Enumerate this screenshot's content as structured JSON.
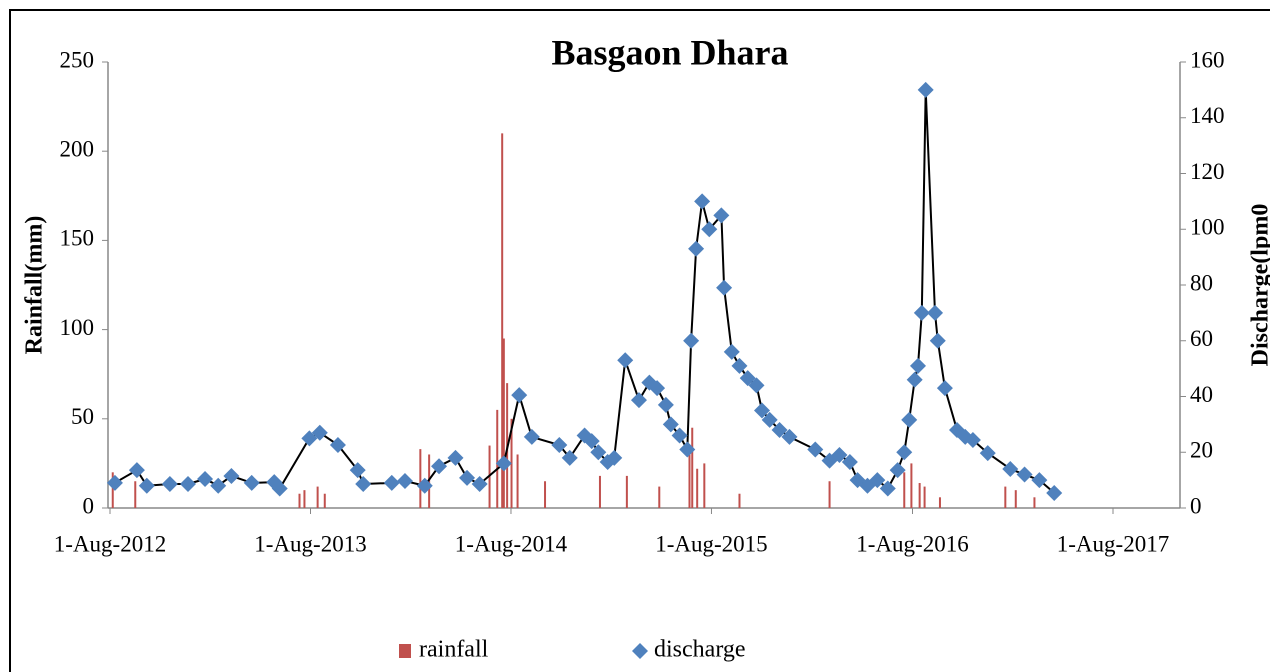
{
  "chart_data": {
    "type": "bar-line",
    "title": "Basgaon Dhara",
    "y_label": "Rainfall(mm)",
    "y2_label": "Discharge(lpm0",
    "xlim": [
      "2012-08-01",
      "2017-12-01"
    ],
    "xticks": [
      {
        "value": "2012-08-01",
        "label": "1-Aug-2012"
      },
      {
        "value": "2013-08-01",
        "label": "1-Aug-2013"
      },
      {
        "value": "2014-08-01",
        "label": "1-Aug-2014"
      },
      {
        "value": "2015-08-01",
        "label": "1-Aug-2015"
      },
      {
        "value": "2016-08-01",
        "label": "1-Aug-2016"
      },
      {
        "value": "2017-08-01",
        "label": "1-Aug-2017"
      }
    ],
    "ylim": [
      0,
      250
    ],
    "yticks": [
      0,
      50,
      100,
      150,
      200,
      250
    ],
    "y2lim": [
      0,
      160
    ],
    "y2ticks": [
      0,
      20,
      40,
      60,
      80,
      100,
      120,
      140,
      160
    ],
    "legend": "bottom",
    "series": [
      {
        "name": "rainfall",
        "type": "bar",
        "color": "#c0504d",
        "x": [
          "2012-08-06",
          "2012-09-16",
          "2013-07-12",
          "2013-07-21",
          "2013-08-14",
          "2013-08-27",
          "2014-02-17",
          "2014-03-05",
          "2014-06-23",
          "2014-07-07",
          "2014-07-16",
          "2014-07-19",
          "2014-07-25",
          "2014-08-02",
          "2014-08-13",
          "2014-10-02",
          "2015-01-10",
          "2015-02-28",
          "2015-04-28",
          "2015-06-22",
          "2015-06-27",
          "2015-07-06",
          "2015-07-19",
          "2015-09-21",
          "2016-03-03",
          "2016-07-17",
          "2016-07-30",
          "2016-08-14",
          "2016-08-23",
          "2016-09-20",
          "2017-01-17",
          "2017-02-05",
          "2017-03-11"
        ],
        "values": [
          20,
          15,
          8,
          10,
          12,
          8,
          33,
          30,
          35,
          55,
          210,
          95,
          70,
          50,
          30,
          15,
          18,
          18,
          12,
          30,
          45,
          22,
          25,
          8,
          15,
          20,
          25,
          14,
          12,
          6,
          12,
          10,
          6
        ]
      },
      {
        "name": "discharge",
        "type": "line",
        "axis": "y2",
        "color": "#4f81bd",
        "line_color": "#000000",
        "x": [
          "2012-08-10",
          "2012-09-19",
          "2012-10-07",
          "2012-11-18",
          "2012-12-21",
          "2013-01-21",
          "2013-02-14",
          "2013-03-10",
          "2013-04-16",
          "2013-05-27",
          "2013-06-06",
          "2013-07-30",
          "2013-08-18",
          "2013-09-20",
          "2013-10-26",
          "2013-11-05",
          "2013-12-27",
          "2014-01-20",
          "2014-02-25",
          "2014-03-23",
          "2014-04-22",
          "2014-05-13",
          "2014-06-05",
          "2014-07-19",
          "2014-08-16",
          "2014-09-08",
          "2014-10-28",
          "2014-11-16",
          "2014-12-13",
          "2014-12-26",
          "2015-01-07",
          "2015-01-24",
          "2015-02-05",
          "2015-02-25",
          "2015-03-22",
          "2015-04-10",
          "2015-04-24",
          "2015-05-10",
          "2015-05-19",
          "2015-06-04",
          "2015-06-18",
          "2015-06-25",
          "2015-07-04",
          "2015-07-15",
          "2015-07-28",
          "2015-08-19",
          "2015-08-24",
          "2015-09-07",
          "2015-09-21",
          "2015-10-06",
          "2015-10-22",
          "2015-11-01",
          "2015-11-15",
          "2015-12-03",
          "2015-12-21",
          "2016-02-06",
          "2016-03-03",
          "2016-03-21",
          "2016-04-09",
          "2016-04-23",
          "2016-05-11",
          "2016-05-29",
          "2016-06-17",
          "2016-07-05",
          "2016-07-17",
          "2016-07-26",
          "2016-08-05",
          "2016-08-11",
          "2016-08-18",
          "2016-08-25",
          "2016-09-11",
          "2016-09-16",
          "2016-09-29",
          "2016-10-21",
          "2016-11-05",
          "2016-11-19",
          "2016-12-16",
          "2017-01-26",
          "2017-02-21",
          "2017-03-20",
          "2017-04-16"
        ],
        "values": [
          9,
          13.6,
          8,
          8.6,
          8.6,
          10.4,
          8,
          11.5,
          9,
          9.3,
          7,
          25,
          27,
          22.6,
          13.6,
          8.6,
          9,
          9.7,
          8,
          15,
          18,
          10.8,
          8.6,
          16,
          40.5,
          25.5,
          22.6,
          18,
          26,
          24,
          20,
          16.5,
          18,
          53,
          38.7,
          45,
          43,
          37,
          30,
          26,
          21,
          60,
          93,
          110,
          100,
          105,
          79,
          56,
          51,
          46.6,
          44,
          35,
          31.6,
          28,
          25.5,
          21,
          17,
          19,
          16.5,
          10,
          8,
          10,
          7,
          13.6,
          20,
          31.6,
          46,
          51,
          70,
          150,
          70,
          60,
          43,
          28,
          25.5,
          24.4,
          19.7,
          14,
          12,
          10,
          5.4
        ]
      }
    ]
  }
}
